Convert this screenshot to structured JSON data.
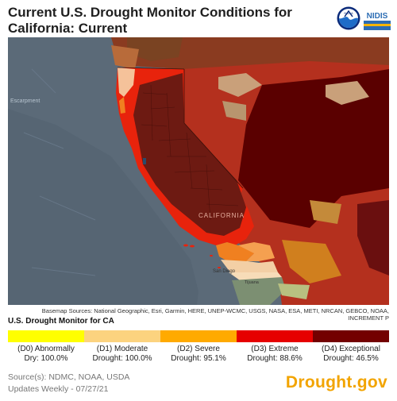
{
  "header": {
    "title": "Current U.S. Drought Monitor Conditions for California: Current",
    "noaa_logo_text": "NOAA",
    "nidis_logo_text": "NIDIS"
  },
  "map": {
    "labels": {
      "california": "CALIFORNIA",
      "san_diego": "San Diego",
      "tijuana": "Tijuana",
      "escarpment": "Escarpment"
    },
    "attribution": "Basemap Sources: National Geographic, Esri, Garmin, HERE, UNEP-WCMC, USGS, NASA, ESA, METI, NRCAN, GEBCO, NOAA, INCREMENT P"
  },
  "legend": {
    "title": "U.S. Drought Monitor for CA",
    "items": [
      {
        "line1": "(D0) Abnormally",
        "line2": "Dry: 100.0%",
        "color": "#ffff00",
        "percent": 100.0
      },
      {
        "line1": "(D1) Moderate",
        "line2": "Drought: 100.0%",
        "color": "#fcd37f",
        "percent": 100.0
      },
      {
        "line1": "(D2) Severe",
        "line2": "Drought: 95.1%",
        "color": "#ffaa00",
        "percent": 95.1
      },
      {
        "line1": "(D3) Extreme",
        "line2": "Drought: 88.6%",
        "color": "#e60000",
        "percent": 88.6
      },
      {
        "line1": "(D4) Exceptional",
        "line2": "Drought: 46.5%",
        "color": "#730000",
        "percent": 46.5
      }
    ]
  },
  "footer": {
    "source": "Source(s): NDMC, NOAA, USDA",
    "updates": "Updates Weekly - 07/27/21",
    "brand": "Drought.gov",
    "brand_color": "#f2a400"
  }
}
